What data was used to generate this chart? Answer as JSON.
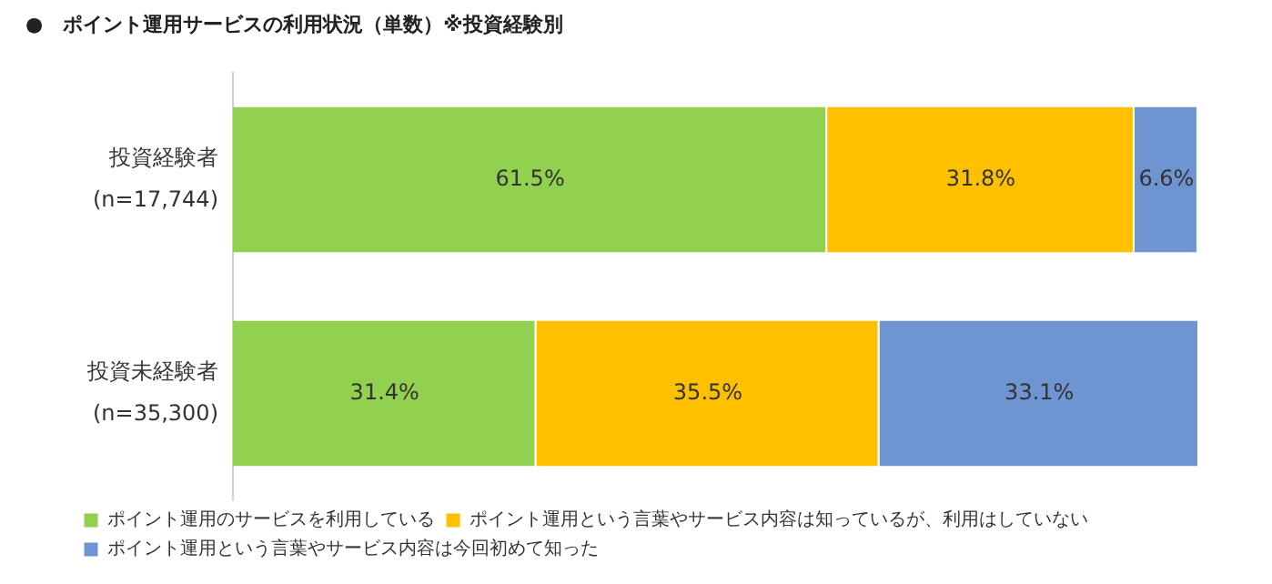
{
  "chart_data": {
    "type": "bar",
    "orientation": "horizontal",
    "stacked": true,
    "title": "●　ポイント運用サービスの利用状況（単数）※投資経験別",
    "categories": [
      "投資経験者\n(n=17,744)",
      "投資未経験者\n(n=35,300)"
    ],
    "series": [
      {
        "name": "ポイント運用のサービスを利用している",
        "color": "#92d050",
        "values": [
          61.5,
          31.4
        ],
        "value_labels": [
          "61.5%",
          "31.4%"
        ]
      },
      {
        "name": "ポイント運用という言葉やサービス内容は知っているが、利用はしていない",
        "color": "#ffc000",
        "values": [
          31.8,
          35.5
        ],
        "value_labels": [
          "31.8%",
          "35.5%"
        ]
      },
      {
        "name": "ポイント運用という言葉やサービス内容は今回初めて知った",
        "color": "#6f94d2",
        "values": [
          6.6,
          33.1
        ],
        "value_labels": [
          "6.6%",
          "33.1%"
        ]
      }
    ],
    "tick_labels": "y",
    "grid": false,
    "legend": "bottom"
  }
}
